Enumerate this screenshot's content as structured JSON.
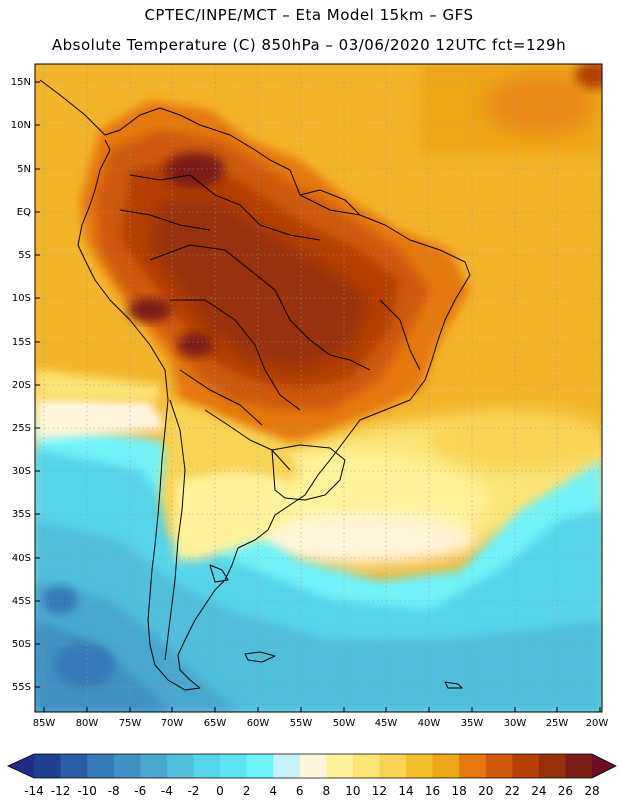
{
  "header": {
    "title_line1": "CPTEC/INPE/MCT –  Eta Model 15km – GFS",
    "title_line2": "Absolute Temperature (C) 850hPa – 03/06/2020 12UTC fct=129h"
  },
  "map": {
    "lat_labels": [
      "15N",
      "10N",
      "5N",
      "EQ",
      "5S",
      "10S",
      "15S",
      "20S",
      "25S",
      "30S",
      "35S",
      "40S",
      "45S",
      "50S",
      "55S"
    ],
    "lon_labels": [
      "85W",
      "80W",
      "75W",
      "70W",
      "65W",
      "60W",
      "55W",
      "50W",
      "45W",
      "40W",
      "35W",
      "30W",
      "25W",
      "20W"
    ]
  },
  "colorbar": {
    "labels": [
      "-14",
      "-12",
      "-10",
      "-8",
      "-6",
      "-4",
      "-2",
      "0",
      "2",
      "4",
      "6",
      "8",
      "10",
      "12",
      "14",
      "16",
      "18",
      "20",
      "22",
      "24",
      "26",
      "28"
    ],
    "colors": [
      "#1f3f8f",
      "#2a5fa8",
      "#3479b8",
      "#3f91c4",
      "#4aa7cf",
      "#4fbfdc",
      "#55d4ea",
      "#5fe3f0",
      "#6ff2f8",
      "#c7f3fb",
      "#fff6dc",
      "#fff29a",
      "#fde575",
      "#f9d352",
      "#f3bf2b",
      "#eda618",
      "#e5780e",
      "#cf5a0a",
      "#b54106",
      "#96300a",
      "#7a1d14"
    ],
    "low_arrow_color": "#232a86",
    "high_arrow_color": "#6e0b26"
  }
}
